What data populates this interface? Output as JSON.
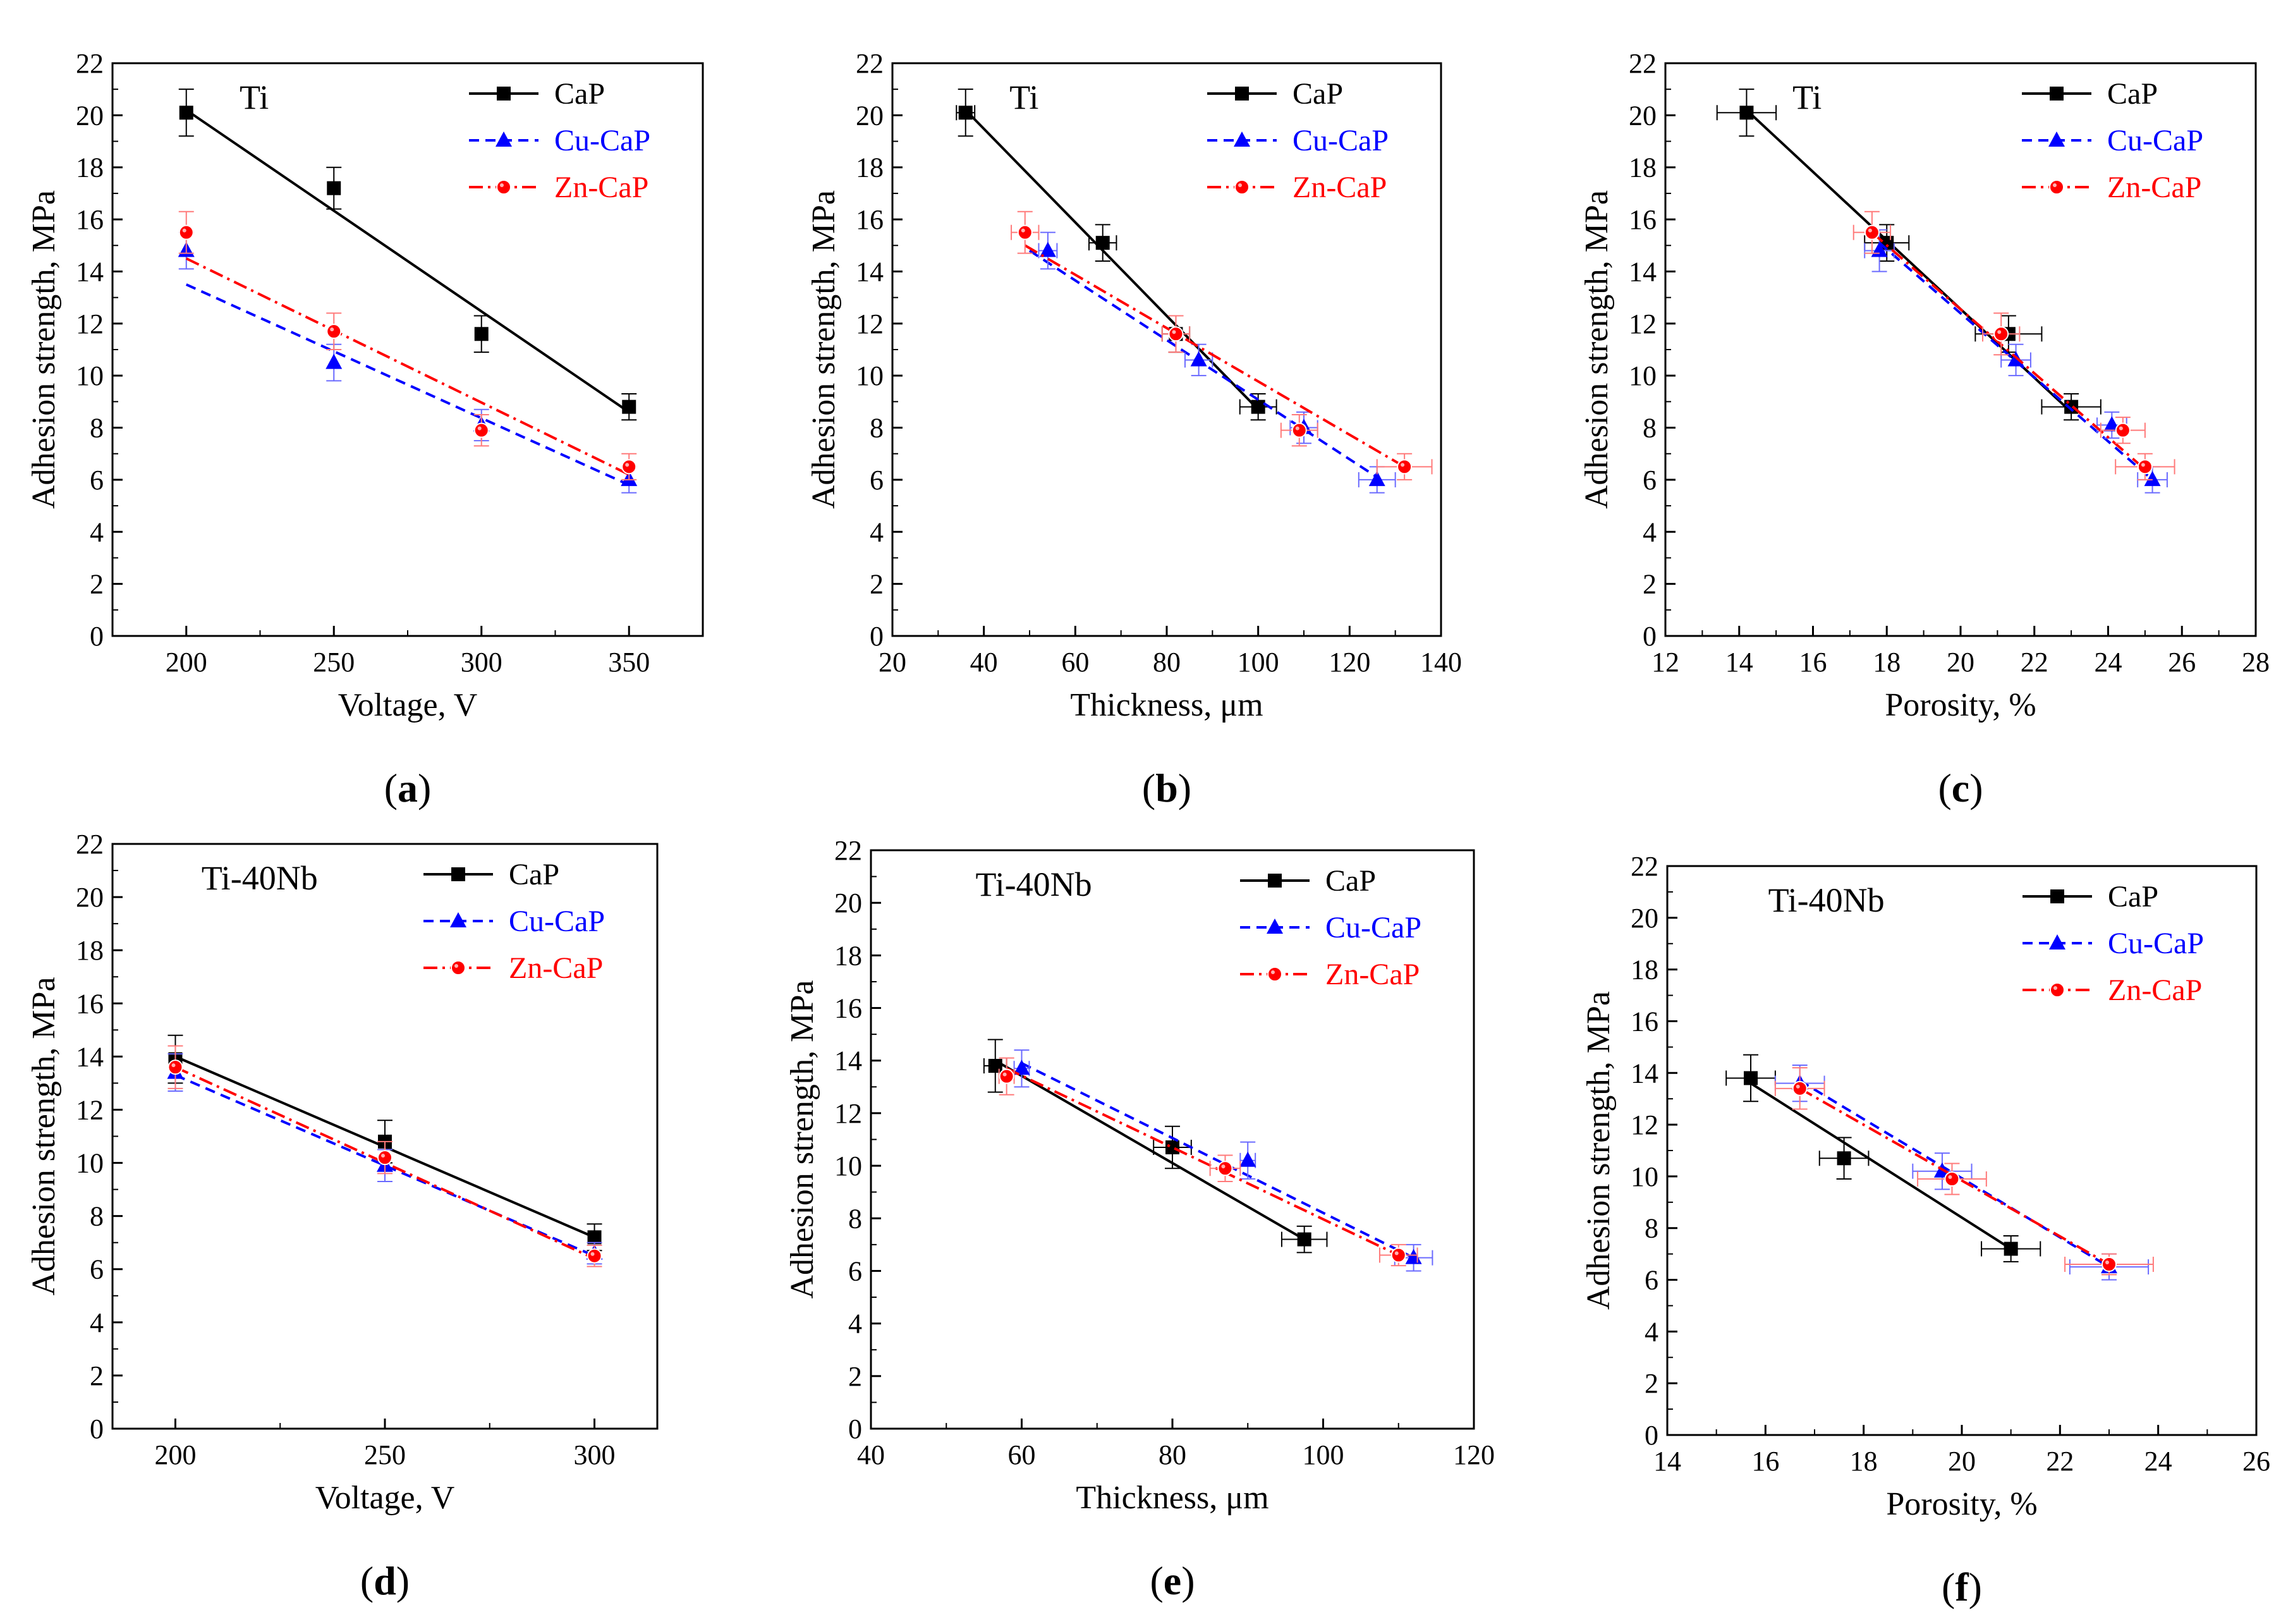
{
  "colors": {
    "CaP": "#000000",
    "Cu-CaP": "#0000ff",
    "Zn-CaP": "#ff0000"
  },
  "chart_data": [
    {
      "id": "a",
      "type": "scatter",
      "title": "Ti",
      "caption_letter": "a",
      "xlabel": "Voltage, V",
      "ylabel": "Adhesion strength, MPa",
      "xlim": [
        175,
        375
      ],
      "xticks": [
        200,
        250,
        300,
        350
      ],
      "ylim": [
        0,
        22
      ],
      "yticks": [
        0,
        2,
        4,
        6,
        8,
        10,
        12,
        14,
        16,
        18,
        20,
        22
      ],
      "legend": [
        "CaP",
        "Cu-CaP",
        "Zn-CaP"
      ],
      "series": [
        {
          "name": "CaP",
          "x": [
            200,
            250,
            300,
            350
          ],
          "y": [
            20.1,
            17.2,
            11.6,
            8.8
          ],
          "yerr": [
            0.9,
            0.8,
            0.7,
            0.5
          ],
          "xerr": [
            0,
            0,
            0,
            0
          ],
          "fit": [
            [
              200,
              20.2
            ],
            [
              350,
              8.6
            ]
          ]
        },
        {
          "name": "Cu-CaP",
          "x": [
            200,
            250,
            300,
            350
          ],
          "y": [
            14.8,
            10.5,
            8.1,
            6.0
          ],
          "yerr": [
            0.7,
            0.7,
            0.6,
            0.5
          ],
          "xerr": [
            0,
            0,
            0,
            0
          ],
          "fit": [
            [
              200,
              13.5
            ],
            [
              350,
              5.8
            ]
          ]
        },
        {
          "name": "Zn-CaP",
          "x": [
            200,
            250,
            300,
            350
          ],
          "y": [
            15.5,
            11.7,
            7.9,
            6.5
          ],
          "yerr": [
            0.8,
            0.7,
            0.6,
            0.5
          ],
          "xerr": [
            0,
            0,
            0,
            0
          ],
          "fit": [
            [
              200,
              14.5
            ],
            [
              350,
              6.2
            ]
          ]
        }
      ]
    },
    {
      "id": "b",
      "type": "scatter",
      "title": "Ti",
      "caption_letter": "b",
      "xlabel": "Thickness, μm",
      "ylabel": "Adhesion strength, MPa",
      "xlim": [
        20,
        140
      ],
      "xticks": [
        20,
        40,
        60,
        80,
        100,
        120,
        140
      ],
      "ylim": [
        0,
        22
      ],
      "yticks": [
        0,
        2,
        4,
        6,
        8,
        10,
        12,
        14,
        16,
        18,
        20,
        22
      ],
      "legend": [
        "CaP",
        "Cu-CaP",
        "Zn-CaP"
      ],
      "series": [
        {
          "name": "CaP",
          "x": [
            36,
            66,
            82,
            100
          ],
          "y": [
            20.1,
            15.1,
            11.6,
            8.8
          ],
          "yerr": [
            0.9,
            0.7,
            0.7,
            0.5
          ],
          "xerr": [
            2,
            3,
            3,
            4
          ],
          "fit": [
            [
              36,
              20.2
            ],
            [
              100,
              8.7
            ]
          ]
        },
        {
          "name": "Cu-CaP",
          "x": [
            54,
            87,
            110,
            126
          ],
          "y": [
            14.8,
            10.6,
            8.0,
            6.0
          ],
          "yerr": [
            0.7,
            0.6,
            0.6,
            0.5
          ],
          "xerr": [
            2,
            3,
            3,
            4
          ],
          "fit": [
            [
              50,
              14.8
            ],
            [
              126,
              6.1
            ]
          ]
        },
        {
          "name": "Zn-CaP",
          "x": [
            49,
            82,
            109,
            132
          ],
          "y": [
            15.5,
            11.6,
            7.9,
            6.5
          ],
          "yerr": [
            0.8,
            0.7,
            0.6,
            0.5
          ],
          "xerr": [
            3,
            3,
            4,
            6
          ],
          "fit": [
            [
              49,
              15.0
            ],
            [
              132,
              6.5
            ]
          ]
        }
      ]
    },
    {
      "id": "c",
      "type": "scatter",
      "title": "Ti",
      "caption_letter": "c",
      "xlabel": "Porosity, %",
      "ylabel": "Adhesion strength, MPa",
      "xlim": [
        12,
        28
      ],
      "xticks": [
        12,
        14,
        16,
        18,
        20,
        22,
        24,
        26,
        28
      ],
      "ylim": [
        0,
        22
      ],
      "yticks": [
        0,
        2,
        4,
        6,
        8,
        10,
        12,
        14,
        16,
        18,
        20,
        22
      ],
      "legend": [
        "CaP",
        "Cu-CaP",
        "Zn-CaP"
      ],
      "series": [
        {
          "name": "CaP",
          "x": [
            14.2,
            18.0,
            21.3,
            23.0
          ],
          "y": [
            20.1,
            15.1,
            11.6,
            8.8
          ],
          "yerr": [
            0.9,
            0.7,
            0.7,
            0.5
          ],
          "xerr": [
            0.8,
            0.6,
            0.9,
            0.8
          ],
          "fit": [
            [
              14.2,
              20.2
            ],
            [
              23.0,
              8.6
            ]
          ]
        },
        {
          "name": "Cu-CaP",
          "x": [
            17.8,
            21.5,
            24.1,
            25.2
          ],
          "y": [
            14.8,
            10.6,
            8.1,
            6.0
          ],
          "yerr": [
            0.8,
            0.6,
            0.5,
            0.5
          ],
          "xerr": [
            0.4,
            0.4,
            0.4,
            0.4
          ],
          "fit": [
            [
              17.8,
              15.1
            ],
            [
              25.2,
              6.0
            ]
          ]
        },
        {
          "name": "Zn-CaP",
          "x": [
            17.6,
            21.1,
            24.4,
            25.0
          ],
          "y": [
            15.5,
            11.6,
            7.9,
            6.5
          ],
          "yerr": [
            0.8,
            0.8,
            0.5,
            0.5
          ],
          "xerr": [
            0.5,
            0.5,
            0.6,
            0.8
          ],
          "fit": [
            [
              17.6,
              15.5
            ],
            [
              25.0,
              6.4
            ]
          ]
        }
      ]
    },
    {
      "id": "d",
      "type": "scatter",
      "title": "Ti-40Nb",
      "caption_letter": "d",
      "xlabel": "Voltage, V",
      "ylabel": "Adhesion strength, MPa",
      "xlim": [
        185,
        315
      ],
      "xticks": [
        200,
        250,
        300
      ],
      "ylim": [
        0,
        22
      ],
      "yticks": [
        0,
        2,
        4,
        6,
        8,
        10,
        12,
        14,
        16,
        18,
        20,
        22
      ],
      "legend": [
        "CaP",
        "Cu-CaP",
        "Zn-CaP"
      ],
      "series": [
        {
          "name": "CaP",
          "x": [
            200,
            250,
            300
          ],
          "y": [
            13.9,
            10.8,
            7.2
          ],
          "yerr": [
            0.9,
            0.8,
            0.5
          ],
          "xerr": [
            0,
            0,
            0
          ],
          "fit": [
            [
              200,
              14.0
            ],
            [
              300,
              7.2
            ]
          ]
        },
        {
          "name": "Cu-CaP",
          "x": [
            200,
            250,
            300
          ],
          "y": [
            13.4,
            9.9,
            6.6
          ],
          "yerr": [
            0.7,
            0.6,
            0.4
          ],
          "xerr": [
            0,
            0,
            0
          ],
          "fit": [
            [
              200,
              13.3
            ],
            [
              300,
              6.5
            ]
          ]
        },
        {
          "name": "Zn-CaP",
          "x": [
            200,
            250,
            300
          ],
          "y": [
            13.6,
            10.2,
            6.5
          ],
          "yerr": [
            0.8,
            0.6,
            0.4
          ],
          "xerr": [
            0,
            0,
            0
          ],
          "fit": [
            [
              200,
              13.6
            ],
            [
              300,
              6.4
            ]
          ]
        }
      ]
    },
    {
      "id": "e",
      "type": "scatter",
      "title": "Ti-40Nb",
      "caption_letter": "e",
      "xlabel": "Thickness, μm",
      "ylabel": "Adhesion strength, MPa",
      "xlim": [
        40,
        120
      ],
      "xticks": [
        40,
        60,
        80,
        100,
        120
      ],
      "ylim": [
        0,
        22
      ],
      "yticks": [
        0,
        2,
        4,
        6,
        8,
        10,
        12,
        14,
        16,
        18,
        20,
        22
      ],
      "legend": [
        "CaP",
        "Cu-CaP",
        "Zn-CaP"
      ],
      "series": [
        {
          "name": "CaP",
          "x": [
            56.5,
            80.0,
            97.5
          ],
          "y": [
            13.8,
            10.7,
            7.2
          ],
          "yerr": [
            1.0,
            0.8,
            0.5
          ],
          "xerr": [
            1.5,
            2.5,
            3.0
          ],
          "fit": [
            [
              56.5,
              14.0
            ],
            [
              97.5,
              7.2
            ]
          ]
        },
        {
          "name": "Cu-CaP",
          "x": [
            60.0,
            90.0,
            112.0
          ],
          "y": [
            13.7,
            10.2,
            6.5
          ],
          "yerr": [
            0.7,
            0.7,
            0.5
          ],
          "xerr": [
            1.0,
            1.0,
            2.5
          ],
          "fit": [
            [
              60.0,
              13.9
            ],
            [
              112.0,
              6.5
            ]
          ]
        },
        {
          "name": "Zn-CaP",
          "x": [
            58.0,
            87.0,
            110.0
          ],
          "y": [
            13.4,
            9.9,
            6.6
          ],
          "yerr": [
            0.7,
            0.5,
            0.4
          ],
          "xerr": [
            1.0,
            2.0,
            2.5
          ],
          "fit": [
            [
              58.0,
              13.7
            ],
            [
              110.0,
              6.6
            ]
          ]
        }
      ]
    },
    {
      "id": "f",
      "type": "scatter",
      "title": "Ti-40Nb",
      "caption_letter": "f",
      "xlabel": "Porosity, %",
      "ylabel": "Adhesion strength, MPa",
      "xlim": [
        14,
        26
      ],
      "xticks": [
        14,
        16,
        18,
        20,
        22,
        24,
        26
      ],
      "ylim": [
        0,
        22
      ],
      "yticks": [
        0,
        2,
        4,
        6,
        8,
        10,
        12,
        14,
        16,
        18,
        20,
        22
      ],
      "legend": [
        "CaP",
        "Cu-CaP",
        "Zn-CaP"
      ],
      "series": [
        {
          "name": "CaP",
          "x": [
            15.7,
            17.6,
            21.0
          ],
          "y": [
            13.8,
            10.7,
            7.2
          ],
          "yerr": [
            0.9,
            0.8,
            0.5
          ],
          "xerr": [
            0.5,
            0.5,
            0.6
          ],
          "fit": [
            [
              15.7,
              13.6
            ],
            [
              21.0,
              7.2
            ]
          ]
        },
        {
          "name": "Cu-CaP",
          "x": [
            16.7,
            19.6,
            23.0
          ],
          "y": [
            13.6,
            10.2,
            6.5
          ],
          "yerr": [
            0.7,
            0.7,
            0.5
          ],
          "xerr": [
            0.5,
            0.6,
            0.8
          ],
          "fit": [
            [
              16.7,
              13.7
            ],
            [
              23.0,
              6.5
            ]
          ]
        },
        {
          "name": "Zn-CaP",
          "x": [
            16.7,
            19.8,
            23.0
          ],
          "y": [
            13.4,
            9.9,
            6.6
          ],
          "yerr": [
            0.8,
            0.6,
            0.4
          ],
          "xerr": [
            0.5,
            0.7,
            0.9
          ],
          "fit": [
            [
              16.7,
              13.4
            ],
            [
              23.0,
              6.6
            ]
          ]
        }
      ]
    }
  ]
}
